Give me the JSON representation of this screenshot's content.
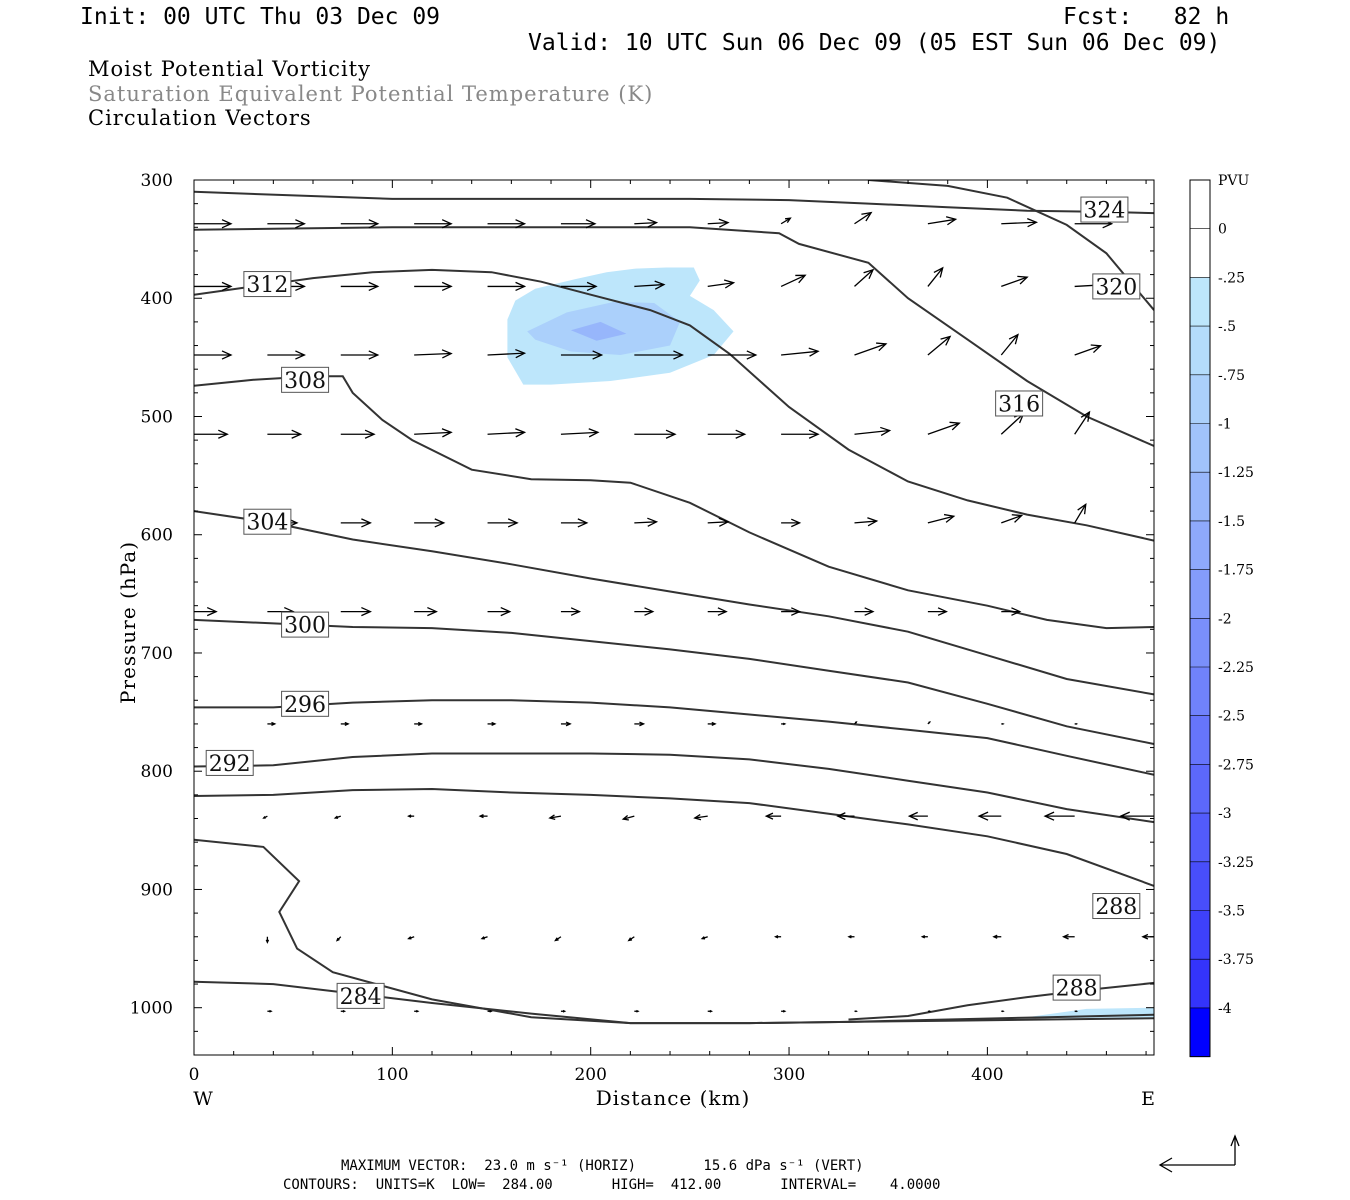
{
  "header": {
    "init": "Init: 00 UTC Thu 03 Dec 09",
    "fcst": "Fcst:   82 h",
    "valid": "Valid: 10 UTC Sun 06 Dec 09 (05 EST Sun 06 Dec 09)"
  },
  "titles": {
    "line1": "Moist Potential Vorticity",
    "line2": "Saturation Equivalent Potential Temperature (K)",
    "line3": "Circulation Vectors"
  },
  "colors": {
    "line1": "#000000",
    "line2": "#888888",
    "line3": "#000000",
    "contour": "#333333"
  },
  "footer": {
    "max_vector": "MAXIMUM VECTOR:  23.0 m s⁻¹ (HORIZ)        15.6 dPa s⁻¹ (VERT)",
    "contours": "CONTOURS:  UNITS=K  LOW=  284.00       HIGH=  412.00       INTERVAL=    4.0000"
  },
  "chart_data": {
    "type": "contour",
    "xlabel": "Distance (km)",
    "ylabel": "Pressure (hPa)",
    "x_ticks": [
      0,
      100,
      200,
      300,
      400
    ],
    "y_ticks": [
      300,
      400,
      500,
      600,
      700,
      800,
      900,
      1000
    ],
    "xlim": [
      0,
      484
    ],
    "ylim": [
      1040,
      300
    ],
    "x_end_labels": {
      "left": "W",
      "right": "E"
    },
    "colorbar": {
      "unit_label": "PVU",
      "levels": [
        "0",
        "-.25",
        "-.5",
        "-.75",
        "-1",
        "-1.25",
        "-1.5",
        "-1.75",
        "-2",
        "-2.25",
        "-2.5",
        "-2.75",
        "-3",
        "-3.25",
        "-3.5",
        "-3.75",
        "-4"
      ],
      "colors": [
        "#ffffff",
        "#ffffff",
        "#bde6fb",
        "#b4dcfb",
        "#abd0fb",
        "#a1c3fb",
        "#97b6fb",
        "#8ea9fb",
        "#849cfb",
        "#7a8ffb",
        "#7082fb",
        "#6675fb",
        "#5c68fb",
        "#525bfb",
        "#484efb",
        "#3e41fb",
        "#3434fb",
        "#0000ff"
      ]
    },
    "mpv_areas": [
      {
        "level": "-.25",
        "color": "#bde6fb",
        "x": [
          158,
          162,
          172,
          192,
          208,
          222,
          238,
          252,
          255,
          250,
          262,
          272,
          262,
          240,
          210,
          180,
          166,
          158
        ],
        "y": [
          418,
          402,
          392,
          384,
          378,
          375,
          374,
          374,
          385,
          398,
          410,
          428,
          448,
          463,
          470,
          473,
          473,
          450
        ]
      },
      {
        "level": "-.5",
        "color": "#abd0fb",
        "x": [
          168,
          188,
          212,
          232,
          245,
          240,
          215,
          190,
          172
        ],
        "y": [
          428,
          412,
          403,
          404,
          420,
          440,
          448,
          445,
          435
        ]
      },
      {
        "level": "-.75",
        "color": "#97b6fb",
        "x": [
          190,
          205,
          218,
          203
        ],
        "y": [
          427,
          420,
          430,
          436
        ]
      },
      {
        "level": "-.25",
        "color": "#bde6fb",
        "x": [
          420,
          450,
          484,
          484,
          440
        ],
        "y": [
          1008,
          1001,
          1000,
          1008,
          1009
        ]
      }
    ],
    "contours": [
      {
        "label": "324",
        "label_at": [
          459,
          325
        ],
        "x": [
          0,
          50,
          100,
          150,
          200,
          250,
          300,
          340,
          380,
          420,
          460,
          484
        ],
        "y": [
          310,
          313,
          316,
          316,
          316,
          316,
          317,
          320,
          323,
          326,
          327,
          328
        ]
      },
      {
        "label": "320",
        "label_at": [
          465,
          390
        ],
        "x": [
          340,
          380,
          410,
          440,
          460,
          484
        ],
        "y": [
          300,
          305,
          315,
          338,
          362,
          410
        ]
      },
      {
        "label": "316",
        "label_at": [
          416,
          489
        ],
        "x": [
          0,
          50,
          100,
          150,
          200,
          250,
          295,
          305,
          340,
          360,
          390,
          420,
          450,
          484
        ],
        "y": [
          342,
          341,
          340,
          340,
          340,
          340,
          345,
          354,
          370,
          400,
          435,
          470,
          500,
          525
        ]
      },
      {
        "label": "312",
        "label_at": [
          37,
          388
        ],
        "x": [
          0,
          30,
          60,
          90,
          120,
          150,
          175,
          200,
          230,
          250,
          270,
          300,
          330,
          360,
          390,
          420,
          450,
          484
        ],
        "y": [
          397,
          390,
          383,
          378,
          376,
          378,
          386,
          397,
          410,
          423,
          447,
          492,
          528,
          555,
          571,
          583,
          592,
          605
        ]
      },
      {
        "label": "308",
        "label_at": [
          56,
          469
        ],
        "x": [
          0,
          30,
          60,
          75,
          80,
          95,
          110,
          140,
          170,
          200,
          220,
          250,
          280,
          320,
          360,
          400,
          430,
          460,
          484
        ],
        "y": [
          474,
          469,
          466,
          466,
          480,
          503,
          520,
          545,
          553,
          554,
          556,
          573,
          598,
          627,
          647,
          660,
          672,
          679,
          678
        ]
      },
      {
        "label": "304",
        "label_at": [
          37,
          589
        ],
        "x": [
          0,
          40,
          80,
          120,
          160,
          200,
          240,
          280,
          320,
          360,
          400,
          440,
          484
        ],
        "y": [
          580,
          590,
          604,
          614,
          625,
          637,
          648,
          659,
          669,
          682,
          702,
          722,
          735
        ]
      },
      {
        "label": "300",
        "label_at": [
          56,
          676
        ],
        "x": [
          0,
          40,
          80,
          120,
          160,
          200,
          240,
          280,
          320,
          360,
          400,
          440,
          484
        ],
        "y": [
          672,
          675,
          678,
          679,
          683,
          690,
          697,
          705,
          715,
          725,
          743,
          762,
          777
        ]
      },
      {
        "label": "296",
        "label_at": [
          56,
          743
        ],
        "x": [
          0,
          40,
          80,
          120,
          160,
          200,
          240,
          280,
          320,
          360,
          400,
          440,
          484
        ],
        "y": [
          746,
          746,
          742,
          740,
          740,
          742,
          746,
          752,
          758,
          765,
          772,
          787,
          803
        ]
      },
      {
        "label": "292",
        "label_at": [
          18,
          793
        ],
        "x": [
          0,
          40,
          80,
          120,
          160,
          200,
          240,
          280,
          320,
          360,
          400,
          440,
          484
        ],
        "y": [
          796,
          795,
          788,
          785,
          785,
          785,
          786,
          790,
          798,
          808,
          818,
          832,
          843
        ]
      },
      {
        "label": "288",
        "label_at": [
          465,
          914
        ],
        "x": [
          0,
          40,
          80,
          120,
          160,
          200,
          240,
          280,
          320,
          360,
          400,
          440,
          484
        ],
        "y": [
          821,
          820,
          816,
          815,
          818,
          820,
          823,
          827,
          836,
          845,
          855,
          870,
          897
        ]
      },
      {
        "label": "288",
        "label_at": [
          445,
          983
        ],
        "x": [
          330,
          360,
          390,
          420,
          450,
          484
        ],
        "y": [
          1010,
          1007,
          998,
          991,
          985,
          979
        ]
      },
      {
        "label": "284",
        "label_at": [
          84,
          990
        ],
        "x": [
          0,
          35,
          53,
          43,
          52,
          70,
          120,
          170,
          220,
          280,
          330,
          380,
          430,
          484
        ],
        "y": [
          858,
          864,
          893,
          919,
          950,
          970,
          993,
          1008,
          1013,
          1013,
          1012,
          1010,
          1008,
          1006
        ]
      },
      {
        "label": "",
        "label_at": null,
        "x": [
          0,
          40,
          80,
          120,
          170,
          220,
          280,
          330,
          380,
          430,
          484
        ],
        "y": [
          978,
          980,
          988,
          996,
          1005,
          1013,
          1013,
          1012,
          1011,
          1010,
          1009
        ]
      }
    ],
    "vectors": [
      {
        "x": [
          0,
          37,
          74,
          111,
          148,
          185,
          222,
          259,
          296,
          333,
          370,
          407,
          444,
          484
        ],
        "p": 337,
        "u": [
          1.0,
          1.0,
          1.0,
          1.0,
          1.0,
          0.92,
          0.6,
          0.55,
          0.25,
          0.45,
          0.75,
          0.95,
          1.0,
          1.0
        ],
        "v": [
          0.0,
          0.0,
          0.0,
          0.0,
          0.0,
          0.0,
          -0.03,
          -0.03,
          -0.15,
          -0.3,
          -0.12,
          -0.04,
          0.0,
          0.0
        ]
      },
      {
        "x": [
          0,
          37,
          74,
          111,
          148,
          185,
          222,
          259,
          296,
          333,
          370,
          407,
          444
        ],
        "p": 390,
        "u": [
          1.0,
          1.0,
          1.0,
          1.0,
          1.0,
          0.95,
          0.8,
          0.7,
          0.65,
          0.5,
          0.4,
          0.7,
          0.9
        ],
        "v": [
          0.0,
          0.0,
          0.0,
          0.0,
          0.0,
          0.0,
          -0.05,
          -0.1,
          -0.3,
          -0.45,
          -0.5,
          -0.25,
          -0.05
        ]
      },
      {
        "x": [
          0,
          37,
          74,
          111,
          148,
          185,
          222,
          259,
          296,
          333,
          370,
          407,
          444
        ],
        "p": 448,
        "u": [
          1.0,
          1.0,
          1.0,
          1.0,
          1.0,
          1.1,
          1.3,
          1.3,
          1.0,
          0.85,
          0.6,
          0.45,
          0.7
        ],
        "v": [
          0.0,
          0.0,
          0.0,
          -0.04,
          -0.05,
          0.0,
          0.0,
          0.0,
          -0.1,
          -0.3,
          -0.5,
          -0.55,
          -0.25
        ]
      },
      {
        "x": [
          0,
          37,
          74,
          111,
          148,
          185,
          222,
          259,
          296,
          333,
          370,
          407,
          444
        ],
        "p": 515,
        "u": [
          0.9,
          0.9,
          0.9,
          1.0,
          1.0,
          1.0,
          1.1,
          1.0,
          1.0,
          0.95,
          0.85,
          0.6,
          0.4
        ],
        "v": [
          0.0,
          0.0,
          0.0,
          -0.05,
          -0.05,
          -0.05,
          0.0,
          0.0,
          0.0,
          -0.1,
          -0.3,
          -0.55,
          -0.6
        ]
      },
      {
        "x": [
          37,
          74,
          111,
          148,
          185,
          222,
          259,
          296,
          333,
          370,
          407,
          444
        ],
        "p": 590,
        "u": [
          0.8,
          0.8,
          0.8,
          0.8,
          0.7,
          0.6,
          0.55,
          0.5,
          0.6,
          0.7,
          0.55,
          0.3
        ],
        "v": [
          0.0,
          0.0,
          0.0,
          0.0,
          0.0,
          -0.03,
          -0.03,
          0.0,
          -0.05,
          -0.18,
          -0.2,
          -0.5
        ]
      },
      {
        "x": [
          0,
          37,
          74,
          111,
          148,
          185,
          222,
          259,
          296,
          333,
          370,
          407
        ],
        "p": 665,
        "u": [
          0.6,
          0.7,
          0.8,
          0.6,
          0.6,
          0.5,
          0.5,
          0.5,
          0.5,
          0.5,
          0.5,
          0.5
        ],
        "v": [
          0.0,
          0.0,
          0.0,
          0.0,
          0.0,
          0.0,
          0.0,
          0.0,
          0.0,
          0.0,
          0.0,
          0.0
        ]
      },
      {
        "x": [
          37,
          74,
          111,
          148,
          185,
          222,
          259,
          296,
          333,
          370,
          407,
          444
        ],
        "p": 760,
        "u": [
          0.2,
          0.2,
          0.2,
          0.2,
          0.25,
          0.25,
          0.2,
          0.1,
          0.05,
          0.05,
          0.05,
          0.05
        ],
        "v": [
          0.0,
          0.0,
          0.0,
          0.0,
          0.0,
          0.0,
          0.0,
          0.0,
          -0.05,
          -0.05,
          0.0,
          0.0
        ]
      },
      {
        "x": [
          37,
          74,
          111,
          148,
          185,
          222,
          259,
          296,
          333,
          370,
          407,
          444,
          484
        ],
        "p": 838,
        "u": [
          -0.1,
          -0.15,
          -0.15,
          -0.2,
          -0.3,
          -0.3,
          -0.35,
          -0.4,
          -0.45,
          -0.5,
          -0.6,
          -0.8,
          -0.9
        ],
        "v": [
          0.05,
          0.05,
          0.0,
          0.0,
          0.05,
          0.08,
          0.05,
          0.0,
          0.0,
          0.0,
          0.0,
          0.0,
          0.0
        ]
      },
      {
        "x": [
          37,
          74,
          111,
          148,
          185,
          222,
          259,
          296,
          333,
          370,
          407,
          444,
          484
        ],
        "p": 940,
        "u": [
          0.0,
          -0.1,
          -0.15,
          -0.15,
          -0.15,
          -0.15,
          -0.15,
          -0.15,
          -0.15,
          -0.15,
          -0.2,
          -0.3,
          -0.3
        ],
        "v": [
          0.15,
          0.1,
          0.05,
          0.05,
          0.1,
          0.1,
          0.05,
          0.0,
          0.0,
          0.0,
          0.0,
          0.0,
          0.0
        ]
      },
      {
        "x": [
          37,
          74,
          111,
          148,
          185,
          222,
          259,
          296,
          333,
          370,
          407,
          444,
          484
        ],
        "p": 1003,
        "u": [
          0.1,
          0.1,
          0.1,
          0.1,
          0.1,
          0.1,
          0.1,
          0.1,
          0.05,
          0.05,
          0.05,
          0.05,
          0.05
        ],
        "v": [
          0.0,
          0.0,
          0.0,
          0.0,
          0.0,
          0.0,
          0.0,
          0.0,
          0.0,
          0.0,
          0.0,
          0.0,
          0.0
        ]
      }
    ]
  }
}
